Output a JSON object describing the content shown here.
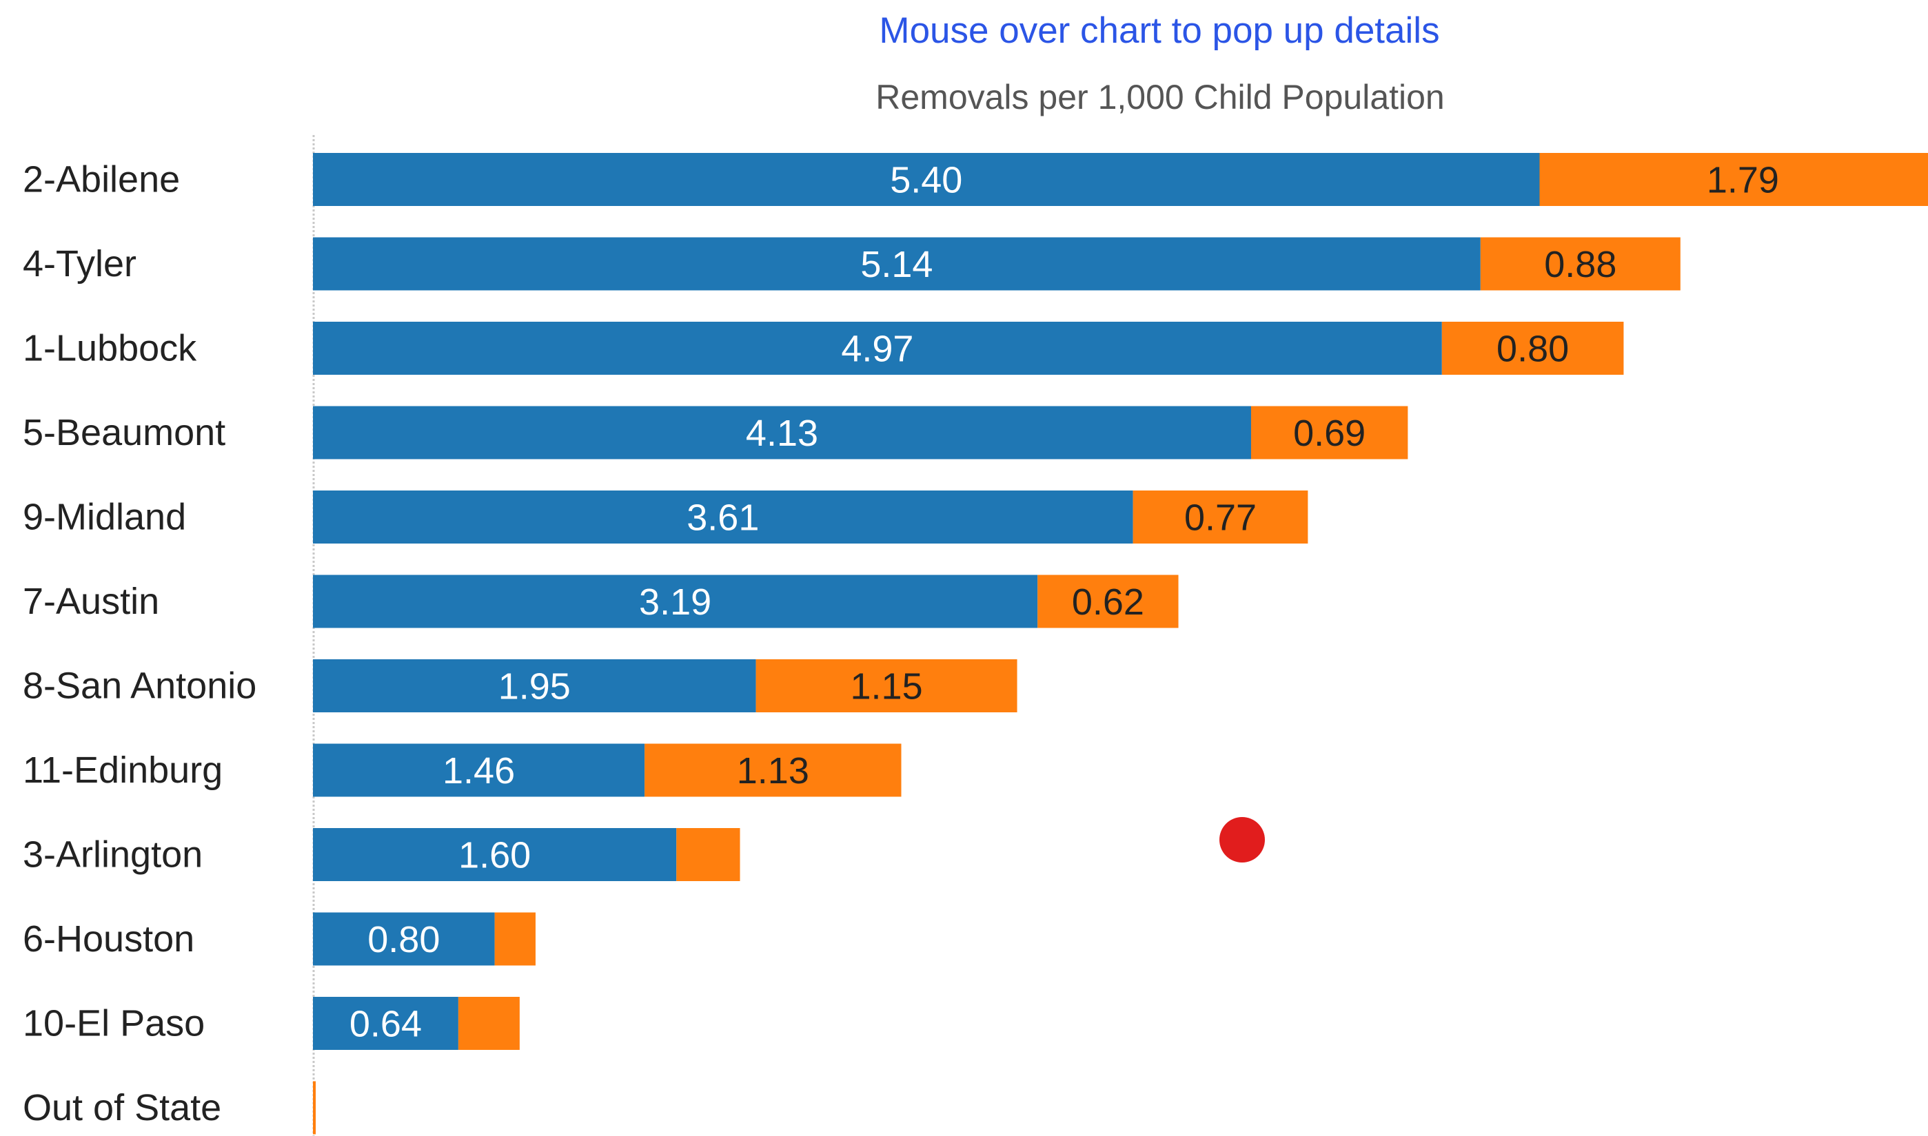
{
  "hint_text": "Mouse over chart to pop up details",
  "colors": {
    "series_1": "#1f77b4",
    "series_2": "#ff7f0e",
    "hint": "#2b55e6",
    "marker": "#e11d1d"
  },
  "chart_data": {
    "type": "bar",
    "orientation": "horizontal",
    "stacked": true,
    "title": "Removals per 1,000 Child Population",
    "categories": [
      "2-Abilene",
      "4-Tyler",
      "1-Lubbock",
      "5-Beaumont",
      "9-Midland",
      "7-Austin",
      "8-San Antonio",
      "11-Edinburg",
      "3-Arlington",
      "6-Houston",
      "10-El Paso",
      "Out of State"
    ],
    "series": [
      {
        "values": [
          5.4,
          5.14,
          4.97,
          4.13,
          3.61,
          3.19,
          1.95,
          1.46,
          1.6,
          0.8,
          0.64,
          0.0
        ],
        "labels": [
          "5.40",
          "5.14",
          "4.97",
          "4.13",
          "3.61",
          "3.19",
          "1.95",
          "1.46",
          "1.60",
          "0.80",
          "0.64",
          ""
        ]
      },
      {
        "values": [
          1.79,
          0.88,
          0.8,
          0.69,
          0.77,
          0.62,
          1.15,
          1.13,
          0.28,
          0.18,
          0.27,
          0.01
        ],
        "labels": [
          "1.79",
          "0.88",
          "0.80",
          "0.69",
          "0.77",
          "0.62",
          "1.15",
          "1.13",
          "",
          "",
          "",
          ""
        ]
      }
    ],
    "xlim": [
      0,
      7.11
    ],
    "grid": false,
    "legend": "none"
  }
}
